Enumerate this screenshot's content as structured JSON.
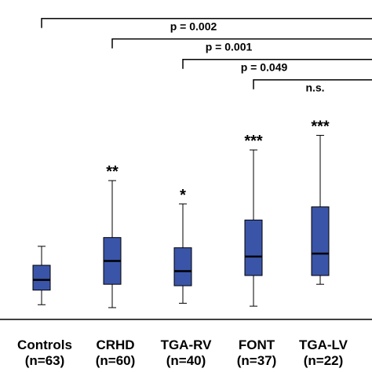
{
  "chart_data": {
    "type": "box",
    "title": "",
    "xlabel": "",
    "ylabel": "",
    "categories": [
      "Controls",
      "CRHD",
      "TGA-RV",
      "FONT",
      "TGA-LV"
    ],
    "n_labels": [
      "(n=63)",
      "(n=60)",
      "(n=40)",
      "(n=37)",
      "(n=22)"
    ],
    "significance_marks": [
      "",
      "**",
      "*",
      "***",
      "***"
    ],
    "box_color": "#3a55a8",
    "boxes": [
      {
        "min": 0.2,
        "q1": 0.7,
        "median": 1.05,
        "q3": 1.55,
        "max": 2.2
      },
      {
        "min": 0.1,
        "q1": 0.9,
        "median": 1.7,
        "q3": 2.5,
        "max": 4.45
      },
      {
        "min": 0.25,
        "q1": 0.85,
        "median": 1.35,
        "q3": 2.15,
        "max": 3.65
      },
      {
        "min": 0.15,
        "q1": 1.2,
        "median": 1.85,
        "q3": 3.1,
        "max": 5.5
      },
      {
        "min": 0.9,
        "q1": 1.2,
        "median": 1.95,
        "q3": 3.55,
        "max": 6.0
      }
    ],
    "ylim": [
      -0.25,
      10.5
    ],
    "comparisons": [
      {
        "from": 1,
        "to": 5,
        "label": "p = 0.002",
        "y": 10.0
      },
      {
        "from": 2,
        "to": 5,
        "label": "p = 0.001",
        "y": 9.3
      },
      {
        "from": 3,
        "to": 5,
        "label": "p = 0.049",
        "y": 8.6
      },
      {
        "from": 4,
        "to": 5,
        "label": "n.s.",
        "y": 7.9
      }
    ]
  }
}
